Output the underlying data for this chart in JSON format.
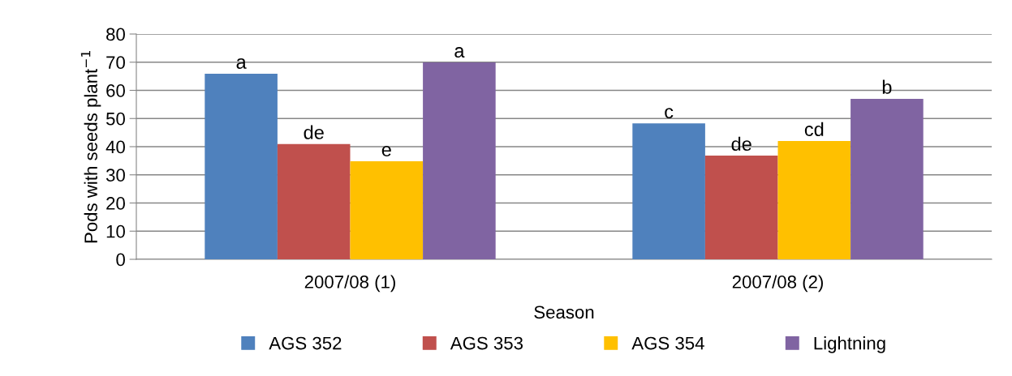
{
  "chart_data": {
    "type": "bar",
    "xlabel": "Season",
    "ylabel": "Pods with seeds plant$^{−1}$",
    "categories": [
      "2007/08 (1)",
      "2007/08 (2)"
    ],
    "series": [
      {
        "name": "AGS 352",
        "color": "#4f81bd",
        "values": [
          65.9,
          48.3
        ],
        "value_labels": [
          "a",
          "c"
        ]
      },
      {
        "name": "AGS 353",
        "color": "#c0504d",
        "values": [
          40.9,
          36.8
        ],
        "value_labels": [
          "de",
          "de"
        ]
      },
      {
        "name": "AGS 354",
        "color": "#ffc000",
        "values": [
          34.8,
          42.0
        ],
        "value_labels": [
          "e",
          "cd"
        ]
      },
      {
        "name": "Lightning",
        "color": "#8064a2",
        "values": [
          69.9,
          57.0
        ],
        "value_labels": [
          "a",
          "b"
        ]
      }
    ],
    "ylim": [
      0,
      80
    ],
    "yticks": [
      0,
      10,
      20,
      30,
      40,
      50,
      60,
      70,
      80
    ],
    "grid": "y",
    "legend": "bottom"
  }
}
